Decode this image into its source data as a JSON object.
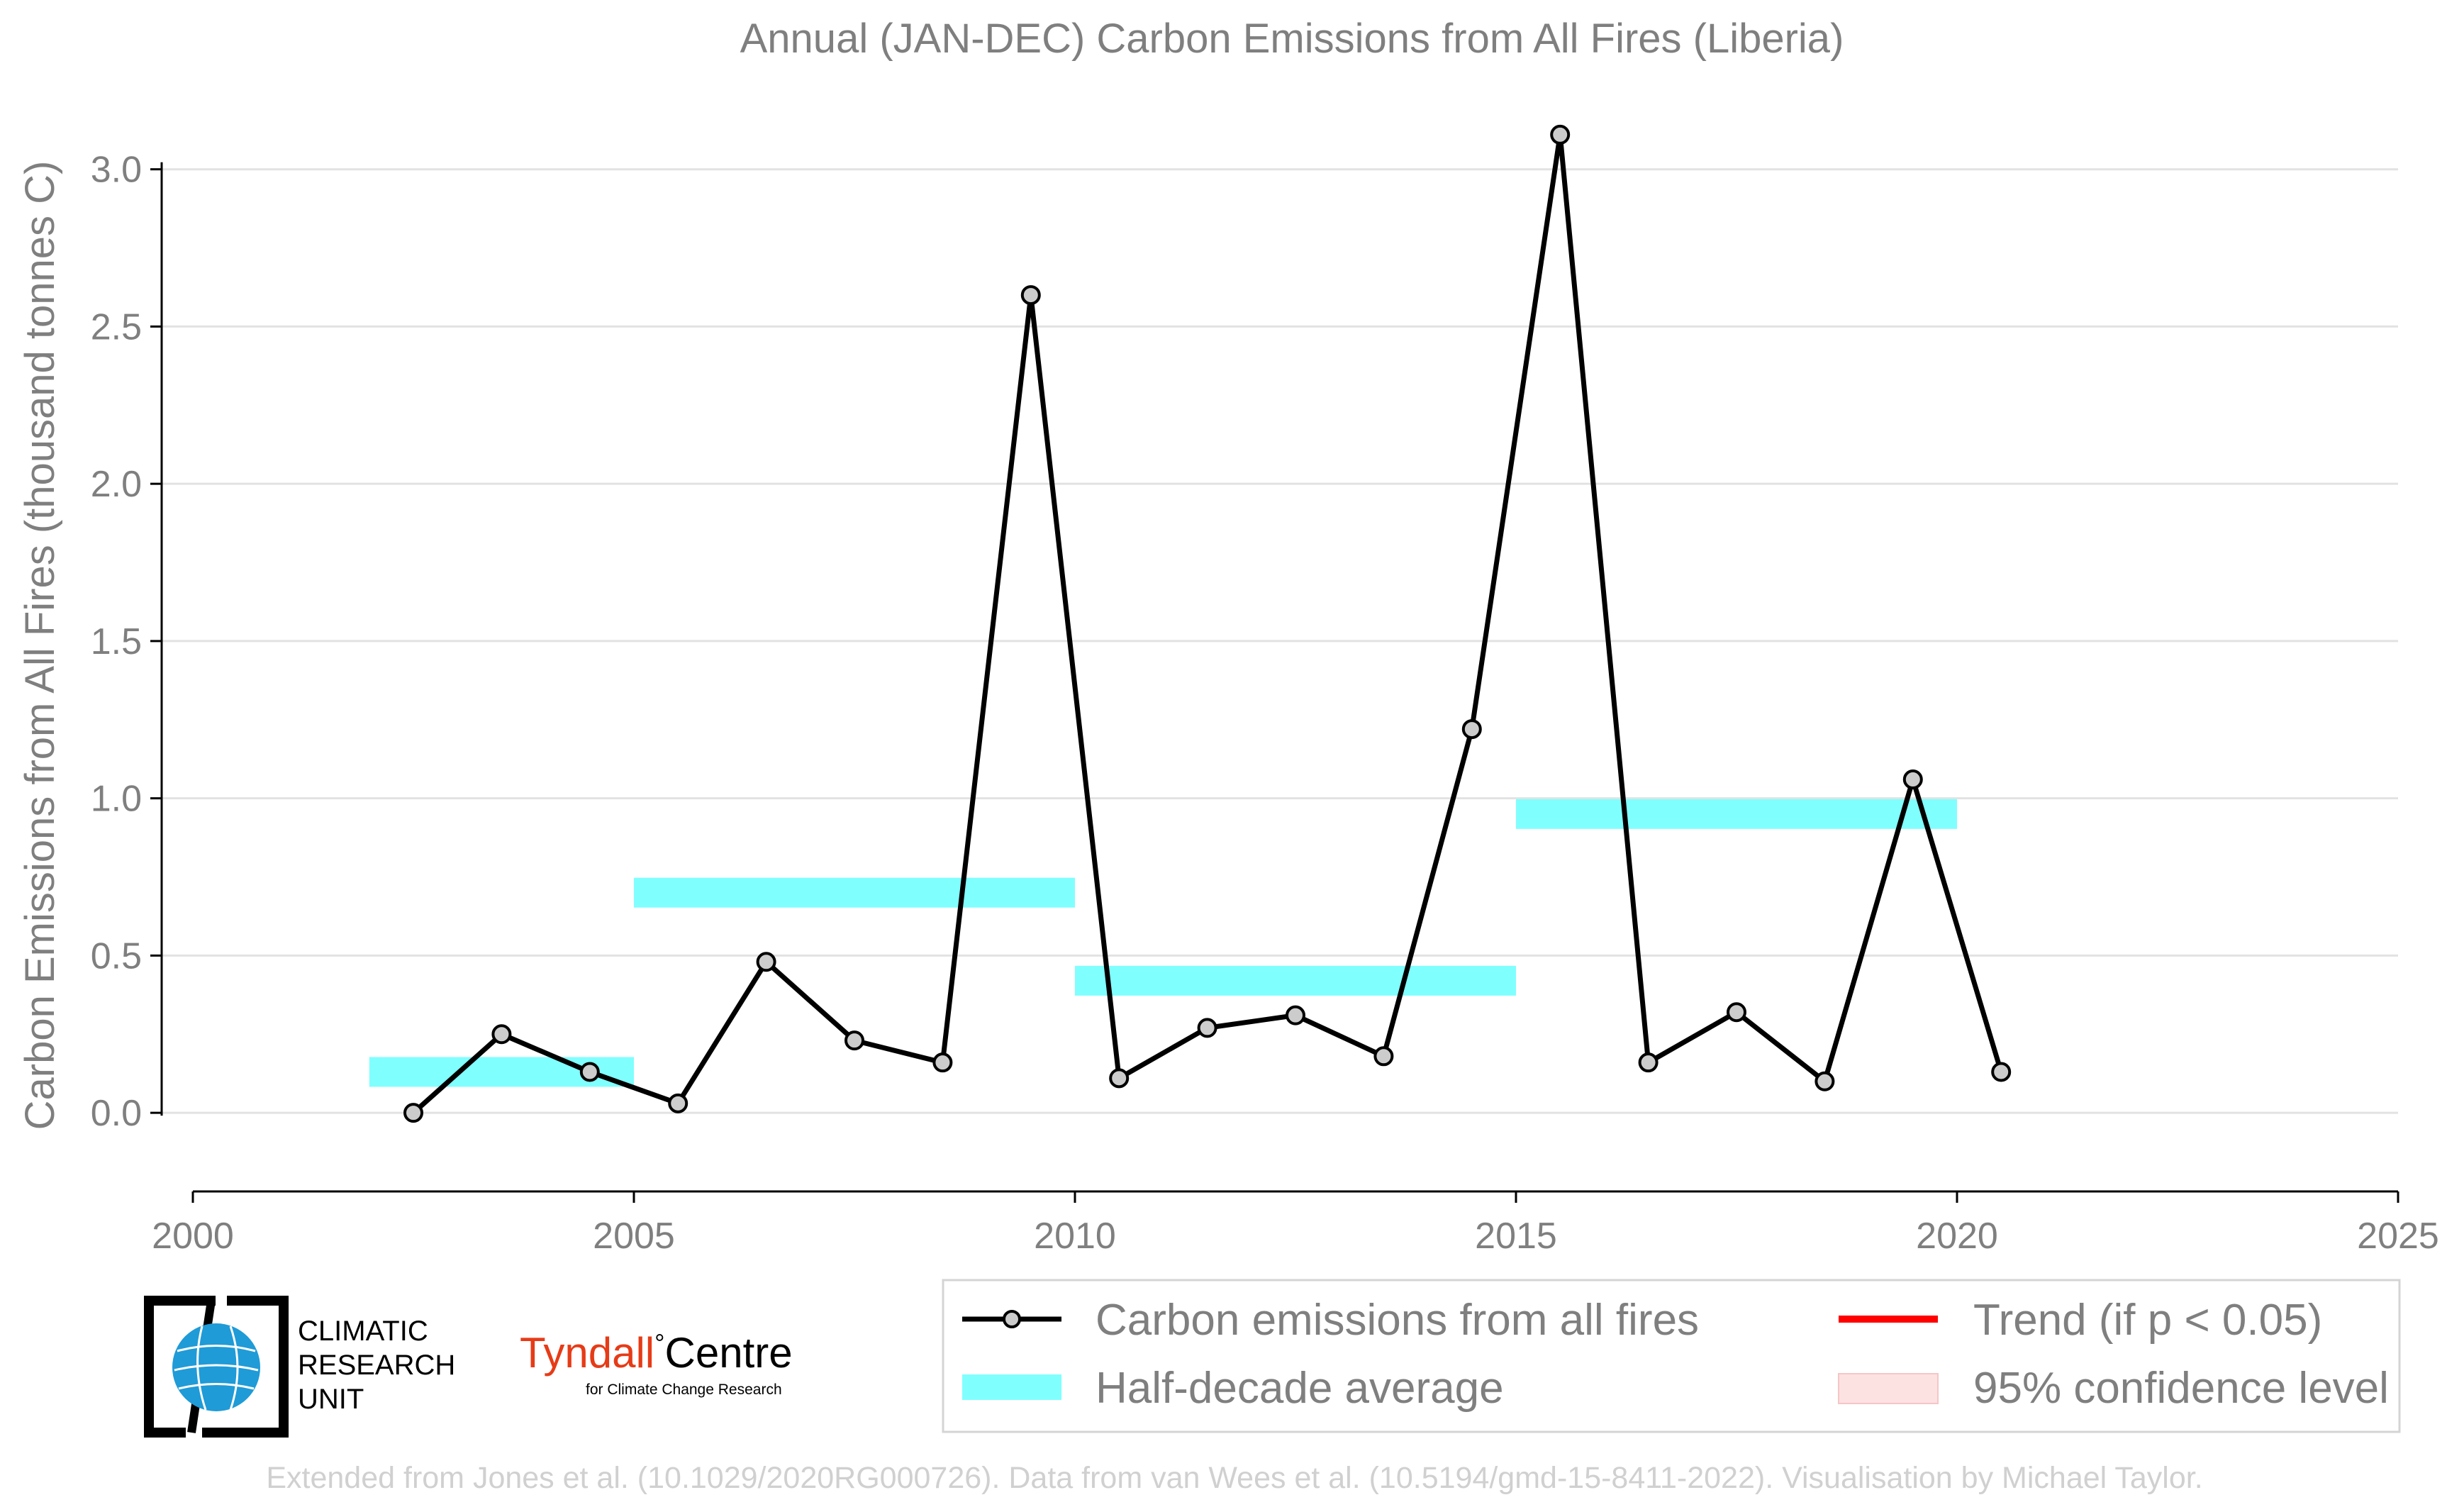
{
  "title": "Annual (JAN-DEC) Carbon Emissions from All Fires (Liberia)",
  "ylabel": "Carbon Emissions from All Fires (thousand tonnes C)",
  "credit": "Extended from Jones et al. (10.1029/2020RG000726). Data from van Wees et al. (10.5194/gmd-15-8411-2022). Visualisation by Michael Taylor.",
  "logos": {
    "cru_line1": "CLIMATIC",
    "cru_line2": "RESEARCH",
    "cru_line3": "UNIT",
    "tyndall_part1": "Tyndall",
    "tyndall_degree": "°",
    "tyndall_part2": "Centre",
    "tyndall_sub": "for Climate Change Research"
  },
  "legend": {
    "series": "Carbon emissions from all fires",
    "average": "Half-decade average",
    "trend": "Trend (if p < 0.05)",
    "confidence": "95% confidence level"
  },
  "colors": {
    "series_line": "#000000",
    "marker_fill": "#cccccc",
    "average": "#80ffff",
    "trend": "#ff0000",
    "confidence": "#fde2e2",
    "text": "#7f7f7f",
    "grid": "#e2e2e2"
  },
  "chart_data": {
    "type": "line",
    "title": "Annual (JAN-DEC) Carbon Emissions from All Fires (Liberia)",
    "xlabel": "",
    "ylabel": "Carbon Emissions from All Fires (thousand tonnes C)",
    "xlim": [
      2000,
      2025
    ],
    "ylim": [
      -0.25,
      3.2
    ],
    "xticks": [
      2000,
      2005,
      2010,
      2015,
      2020,
      2025
    ],
    "xtick_labels": [
      "2000",
      "2005",
      "2010",
      "2015",
      "2020",
      "2025"
    ],
    "yticks": [
      0.0,
      0.5,
      1.0,
      1.5,
      2.0,
      2.5,
      3.0
    ],
    "ytick_labels": [
      "0.0",
      "0.5",
      "1.0",
      "1.5",
      "2.0",
      "2.5",
      "3.0"
    ],
    "grid": "horizontal",
    "legend_position": "bottom-right",
    "series": [
      {
        "name": "Carbon emissions from all fires",
        "x": [
          2002.5,
          2003.5,
          2004.5,
          2005.5,
          2006.5,
          2007.5,
          2008.5,
          2009.5,
          2010.5,
          2011.5,
          2012.5,
          2013.5,
          2014.5,
          2015.5,
          2016.5,
          2017.5,
          2018.5,
          2019.5,
          2020.5
        ],
        "values": [
          0.0,
          0.25,
          0.13,
          0.03,
          0.48,
          0.23,
          0.16,
          2.6,
          0.11,
          0.27,
          0.31,
          0.18,
          1.22,
          3.11,
          0.16,
          0.32,
          0.1,
          1.06,
          0.13
        ]
      }
    ],
    "half_decade_average": [
      {
        "start": 2002,
        "end": 2005,
        "value": 0.13
      },
      {
        "start": 2005,
        "end": 2010,
        "value": 0.7
      },
      {
        "start": 2010,
        "end": 2015,
        "value": 0.42
      },
      {
        "start": 2015,
        "end": 2020,
        "value": 0.95
      }
    ]
  }
}
